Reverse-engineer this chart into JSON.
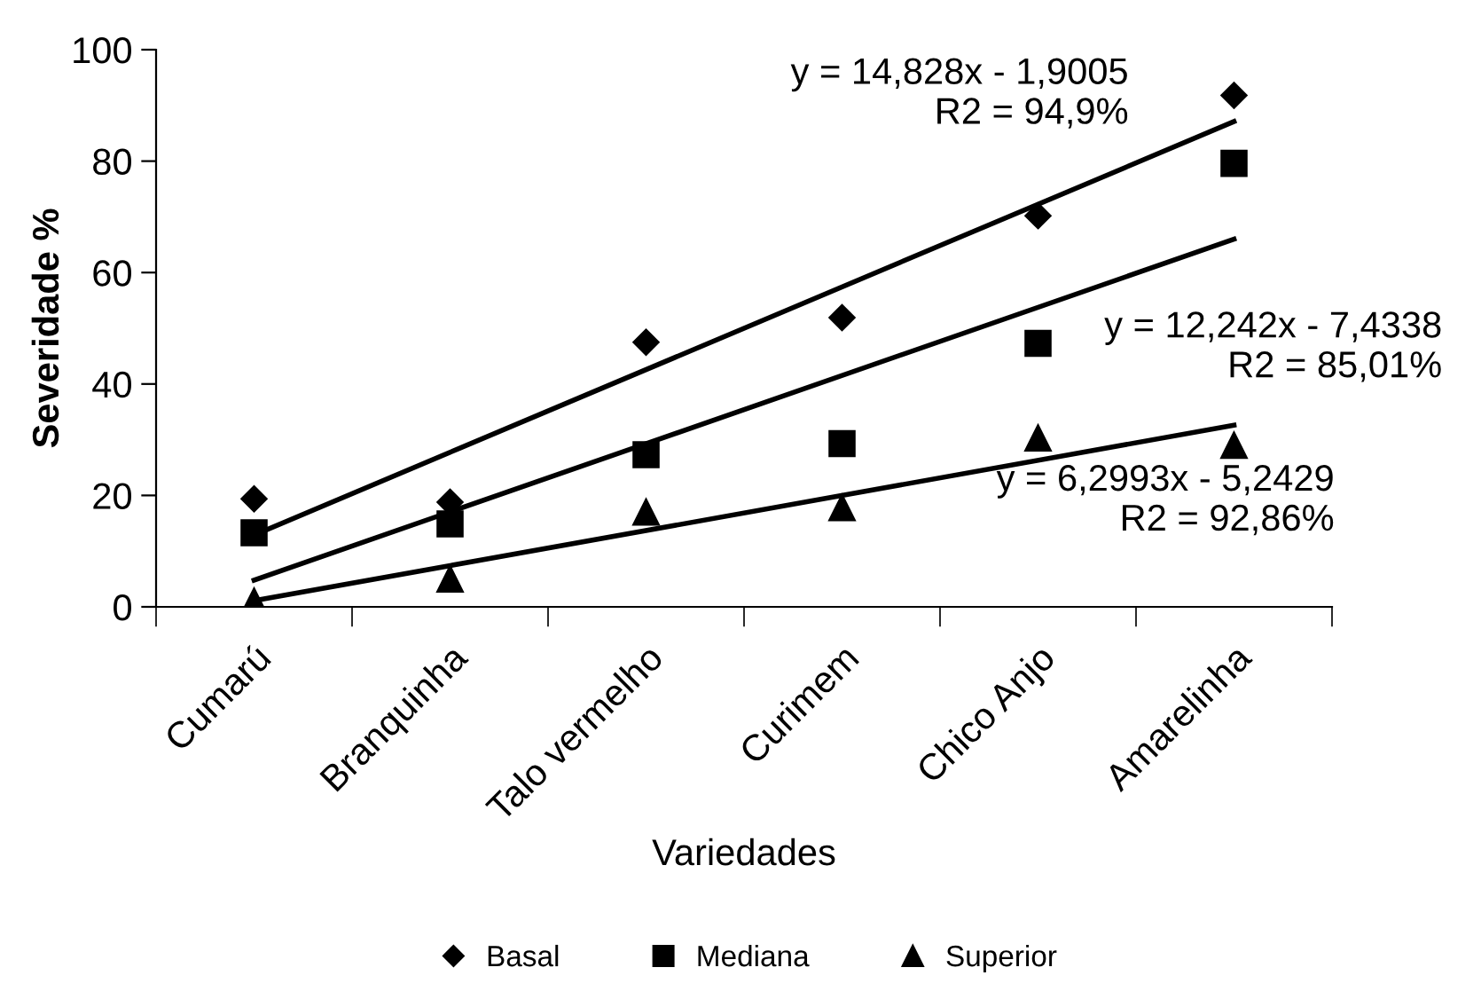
{
  "chart_data": {
    "type": "scatter",
    "xlabel": "Variedades",
    "ylabel": "Severidade %",
    "categories": [
      "Cumarú",
      "Branquinha",
      "Talo vermelho",
      "Curimem",
      "Chico Anjo",
      "Amarelinha"
    ],
    "ylim": [
      0,
      100
    ],
    "yticks": [
      0,
      20,
      40,
      60,
      80,
      100
    ],
    "grid": false,
    "legend": "bottom",
    "series": [
      {
        "name": "Basal",
        "color": "#000000",
        "marker": "diamond",
        "values": [
          19.4,
          18.8,
          47.5,
          51.9,
          70.2,
          91.8
        ]
      },
      {
        "name": "Mediana",
        "color": "#000000",
        "marker": "square",
        "values": [
          13.3,
          14.9,
          27.3,
          29.3,
          47.3,
          79.6
        ]
      },
      {
        "name": "Superior",
        "color": "#000000",
        "marker": "triangle",
        "values": [
          1,
          5.0,
          17.0,
          17.8,
          30.3,
          29.0
        ]
      },
      {
        "type": "line",
        "color": "#000000",
        "marker": "none",
        "x": [
          "Cumarú",
          "Amarelinha"
        ],
        "values": [
          12.9,
          87.1
        ]
      },
      {
        "type": "line",
        "color": "#000000",
        "marker": "none",
        "x": [
          "Cumarú",
          "Amarelinha"
        ],
        "values": [
          4.8,
          66.0
        ]
      },
      {
        "type": "line",
        "color": "#000000",
        "marker": "none",
        "x": [
          "Cumarú",
          "Amarelinha"
        ],
        "values": [
          1.1,
          32.6
        ]
      }
    ],
    "annotations": [
      "y = 14,828x - 1,9005\nR2 = 94,9%",
      "y = 12,242x - 7,4338\nR2 = 85,01%",
      "y = 6,2993x - 5,2429\nR2 = 92,86%"
    ]
  }
}
